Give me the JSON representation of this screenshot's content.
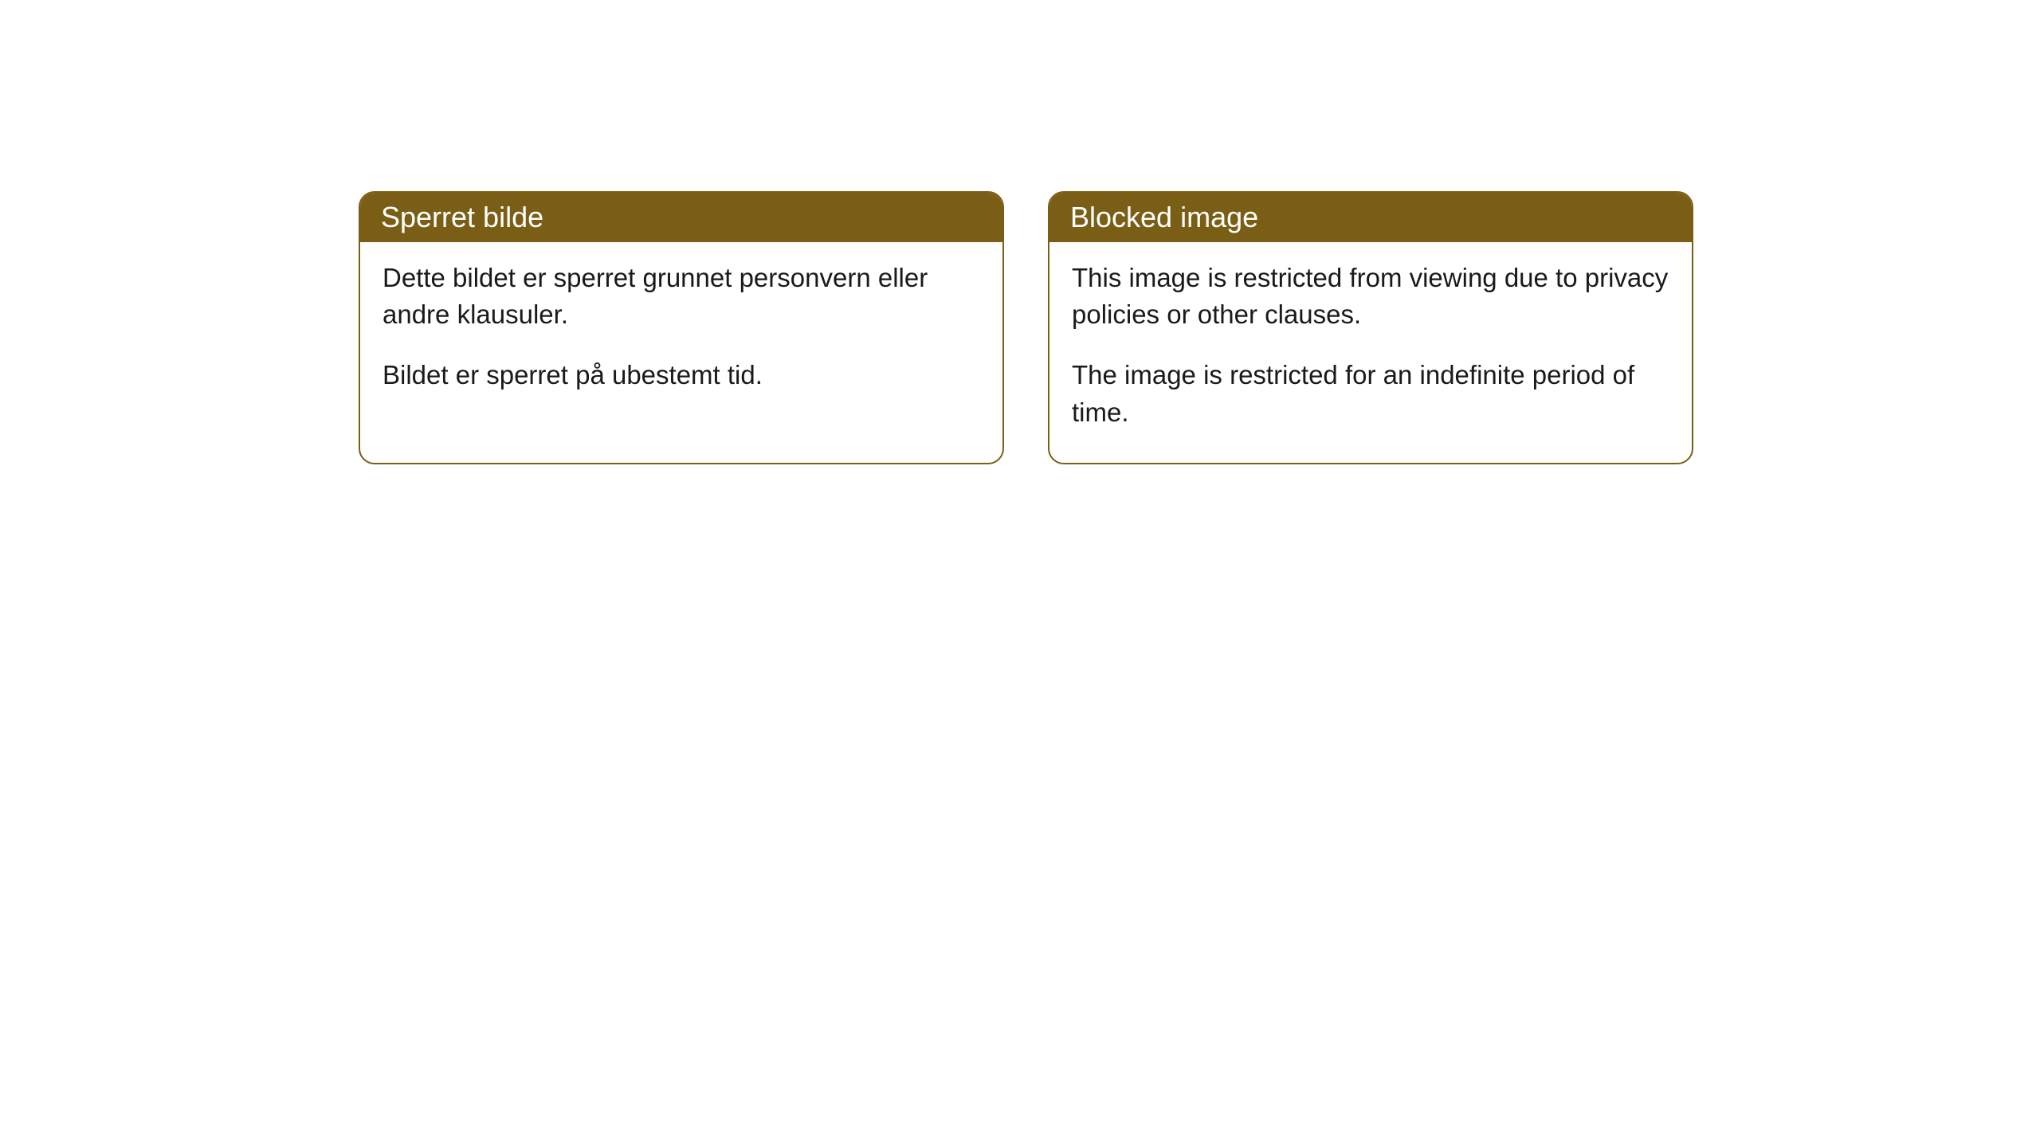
{
  "cards": [
    {
      "title": "Sperret bilde",
      "paragraph1": "Dette bildet er sperret grunnet personvern eller andre klausuler.",
      "paragraph2": "Bildet er sperret på ubestemt tid."
    },
    {
      "title": "Blocked image",
      "paragraph1": "This image is restricted from viewing due to privacy policies or other clauses.",
      "paragraph2": "The image is restricted for an indefinite period of time."
    }
  ],
  "styling": {
    "header_background_color": "#7a5e15",
    "header_text_color": "#ffffff",
    "border_color": "#7a5e15",
    "body_text_color": "#1a1a1a",
    "card_background_color": "#ffffff",
    "page_background_color": "#ffffff",
    "border_radius": 20,
    "header_font_size": 36,
    "body_font_size": 33
  }
}
